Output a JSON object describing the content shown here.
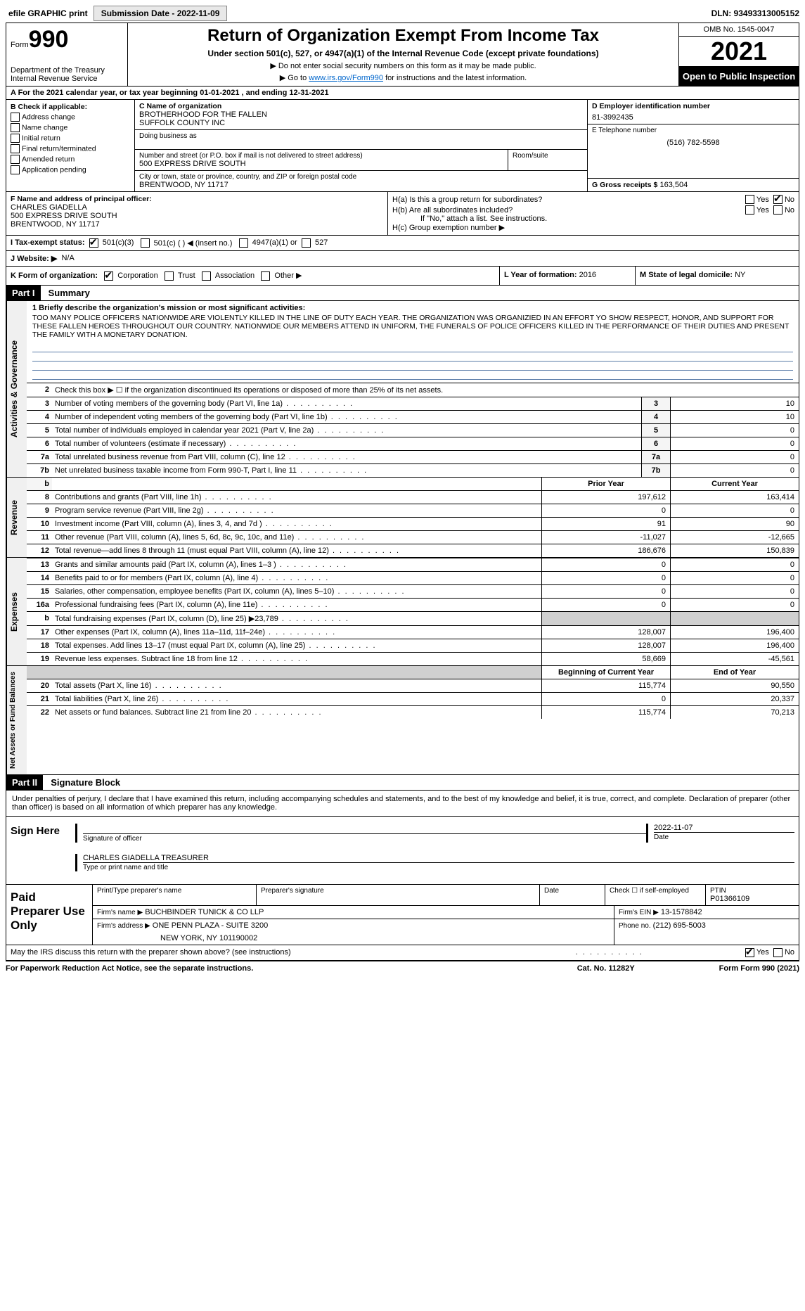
{
  "topbar": {
    "efile_label": "efile GRAPHIC print",
    "submission_label": "Submission Date - 2022-11-09",
    "dln_label": "DLN: 93493313005152"
  },
  "header": {
    "form_label": "Form",
    "form_num": "990",
    "dept": "Department of the Treasury",
    "irs": "Internal Revenue Service",
    "title": "Return of Organization Exempt From Income Tax",
    "subtitle": "Under section 501(c), 527, or 4947(a)(1) of the Internal Revenue Code (except private foundations)",
    "note1": "▶ Do not enter social security numbers on this form as it may be made public.",
    "note2_pre": "▶ Go to ",
    "note2_link": "www.irs.gov/Form990",
    "note2_post": " for instructions and the latest information.",
    "omb": "OMB No. 1545-0047",
    "year": "2021",
    "open": "Open to Public Inspection"
  },
  "period": {
    "line": "A For the 2021 calendar year, or tax year beginning 01-01-2021   , and ending 12-31-2021"
  },
  "boxB": {
    "header": "B Check if applicable:",
    "opts": [
      "Address change",
      "Name change",
      "Initial return",
      "Final return/terminated",
      "Amended return",
      "Application pending"
    ]
  },
  "boxC": {
    "name_label": "C Name of organization",
    "name1": "BROTHERHOOD FOR THE FALLEN",
    "name2": "SUFFOLK COUNTY INC",
    "dba_label": "Doing business as",
    "street_label": "Number and street (or P.O. box if mail is not delivered to street address)",
    "street": "500 EXPRESS DRIVE SOUTH",
    "room_label": "Room/suite",
    "city_label": "City or town, state or province, country, and ZIP or foreign postal code",
    "city": "BRENTWOOD, NY  11717"
  },
  "boxD": {
    "label": "D Employer identification number",
    "val": "81-3992435"
  },
  "boxE": {
    "label": "E Telephone number",
    "val": "(516) 782-5598"
  },
  "boxG": {
    "label": "G Gross receipts $",
    "val": "163,504"
  },
  "boxF": {
    "label": "F Name and address of principal officer:",
    "name": "CHARLES GIADELLA",
    "street": "500 EXPRESS DRIVE SOUTH",
    "city": "BRENTWOOD, NY  11717"
  },
  "boxH": {
    "a_label": "H(a)  Is this a group return for subordinates?",
    "b_label": "H(b)  Are all subordinates included?",
    "b_note": "If \"No,\" attach a list. See instructions.",
    "c_label": "H(c)  Group exemption number ▶"
  },
  "boxI": {
    "label": "I   Tax-exempt status:",
    "o1": "501(c)(3)",
    "o2": "501(c) (   ) ◀ (insert no.)",
    "o3": "4947(a)(1) or",
    "o4": "527"
  },
  "boxJ": {
    "label": "J   Website: ▶",
    "val": "N/A"
  },
  "boxK": {
    "label": "K Form of organization:",
    "o1": "Corporation",
    "o2": "Trust",
    "o3": "Association",
    "o4": "Other ▶"
  },
  "boxL": {
    "label": "L Year of formation:",
    "val": "2016"
  },
  "boxM": {
    "label": "M State of legal domicile:",
    "val": "NY"
  },
  "part1": {
    "header": "Part I",
    "title": "Summary",
    "mission_label": "1   Briefly describe the organization's mission or most significant activities:",
    "mission": "TOO MANY POLICE OFFICERS NATIONWIDE ARE VIOLENTLY KILLED IN THE LINE OF DUTY EACH YEAR. THE ORGANIZATION WAS ORGANIZIED IN AN EFFORT YO SHOW RESPECT, HONOR, AND SUPPORT FOR THESE FALLEN HEROES THROUGHOUT OUR COUNTRY. NATIONWIDE OUR MEMBERS ATTEND IN UNIFORM, THE FUNERALS OF POLICE OFFICERS KILLED IN THE PERFORMANCE OF THEIR DUTIES AND PRESENT THE FAMILY WITH A MONETARY DONATION.",
    "line2": "Check this box ▶ ☐  if the organization discontinued its operations or disposed of more than 25% of its net assets.",
    "vtab_gov": "Activities & Governance",
    "vtab_rev": "Revenue",
    "vtab_exp": "Expenses",
    "vtab_net": "Net Assets or Fund Balances",
    "rows_gov": [
      {
        "n": "3",
        "d": "Number of voting members of the governing body (Part VI, line 1a)",
        "bn": "3",
        "v": "10"
      },
      {
        "n": "4",
        "d": "Number of independent voting members of the governing body (Part VI, line 1b)",
        "bn": "4",
        "v": "10"
      },
      {
        "n": "5",
        "d": "Total number of individuals employed in calendar year 2021 (Part V, line 2a)",
        "bn": "5",
        "v": "0"
      },
      {
        "n": "6",
        "d": "Total number of volunteers (estimate if necessary)",
        "bn": "6",
        "v": "0"
      },
      {
        "n": "7a",
        "d": "Total unrelated business revenue from Part VIII, column (C), line 12",
        "bn": "7a",
        "v": "0"
      },
      {
        "n": "7b",
        "d": "Net unrelated business taxable income from Form 990-T, Part I, line 11",
        "bn": "7b",
        "v": "0"
      }
    ],
    "col_prior": "Prior Year",
    "col_current": "Current Year",
    "rows_rev": [
      {
        "n": "8",
        "d": "Contributions and grants (Part VIII, line 1h)",
        "py": "197,612",
        "cy": "163,414"
      },
      {
        "n": "9",
        "d": "Program service revenue (Part VIII, line 2g)",
        "py": "0",
        "cy": "0"
      },
      {
        "n": "10",
        "d": "Investment income (Part VIII, column (A), lines 3, 4, and 7d )",
        "py": "91",
        "cy": "90"
      },
      {
        "n": "11",
        "d": "Other revenue (Part VIII, column (A), lines 5, 6d, 8c, 9c, 10c, and 11e)",
        "py": "-11,027",
        "cy": "-12,665"
      },
      {
        "n": "12",
        "d": "Total revenue—add lines 8 through 11 (must equal Part VIII, column (A), line 12)",
        "py": "186,676",
        "cy": "150,839"
      }
    ],
    "rows_exp": [
      {
        "n": "13",
        "d": "Grants and similar amounts paid (Part IX, column (A), lines 1–3 )",
        "py": "0",
        "cy": "0"
      },
      {
        "n": "14",
        "d": "Benefits paid to or for members (Part IX, column (A), line 4)",
        "py": "0",
        "cy": "0"
      },
      {
        "n": "15",
        "d": "Salaries, other compensation, employee benefits (Part IX, column (A), lines 5–10)",
        "py": "0",
        "cy": "0"
      },
      {
        "n": "16a",
        "d": "Professional fundraising fees (Part IX, column (A), line 11e)",
        "py": "0",
        "cy": "0"
      },
      {
        "n": "b",
        "d": "Total fundraising expenses (Part IX, column (D), line 25) ▶23,789",
        "py": "",
        "cy": "",
        "grey": true
      },
      {
        "n": "17",
        "d": "Other expenses (Part IX, column (A), lines 11a–11d, 11f–24e)",
        "py": "128,007",
        "cy": "196,400"
      },
      {
        "n": "18",
        "d": "Total expenses. Add lines 13–17 (must equal Part IX, column (A), line 25)",
        "py": "128,007",
        "cy": "196,400"
      },
      {
        "n": "19",
        "d": "Revenue less expenses. Subtract line 18 from line 12",
        "py": "58,669",
        "cy": "-45,561"
      }
    ],
    "col_begin": "Beginning of Current Year",
    "col_end": "End of Year",
    "rows_net": [
      {
        "n": "20",
        "d": "Total assets (Part X, line 16)",
        "py": "115,774",
        "cy": "90,550"
      },
      {
        "n": "21",
        "d": "Total liabilities (Part X, line 26)",
        "py": "0",
        "cy": "20,337"
      },
      {
        "n": "22",
        "d": "Net assets or fund balances. Subtract line 21 from line 20",
        "py": "115,774",
        "cy": "70,213"
      }
    ]
  },
  "part2": {
    "header": "Part II",
    "title": "Signature Block",
    "decl": "Under penalties of perjury, I declare that I have examined this return, including accompanying schedules and statements, and to the best of my knowledge and belief, it is true, correct, and complete. Declaration of preparer (other than officer) is based on all information of which preparer has any knowledge.",
    "sign_here": "Sign Here",
    "sig_officer": "Signature of officer",
    "date_val": "2022-11-07",
    "date_lbl": "Date",
    "officer_name": "CHARLES GIADELLA  TREASURER",
    "type_name": "Type or print name and title",
    "paid": "Paid Preparer Use Only",
    "pt_name_lbl": "Print/Type preparer's name",
    "pt_sig_lbl": "Preparer's signature",
    "pt_date_lbl": "Date",
    "pt_self_lbl": "Check ☐ if self-employed",
    "ptin_lbl": "PTIN",
    "ptin": "P01366109",
    "firm_name_lbl": "Firm's name   ▶",
    "firm_name": "BUCHBINDER TUNICK & CO LLP",
    "firm_ein_lbl": "Firm's EIN ▶",
    "firm_ein": "13-1578842",
    "firm_addr_lbl": "Firm's address ▶",
    "firm_addr1": "ONE PENN PLAZA - SUITE 3200",
    "firm_addr2": "NEW YORK, NY  101190002",
    "phone_lbl": "Phone no.",
    "phone": "(212) 695-5003",
    "discuss": "May the IRS discuss this return with the preparer shown above? (see instructions)",
    "yes": "Yes",
    "no": "No"
  },
  "footer": {
    "pra": "For Paperwork Reduction Act Notice, see the separate instructions.",
    "cat": "Cat. No. 11282Y",
    "form": "Form 990 (2021)"
  }
}
